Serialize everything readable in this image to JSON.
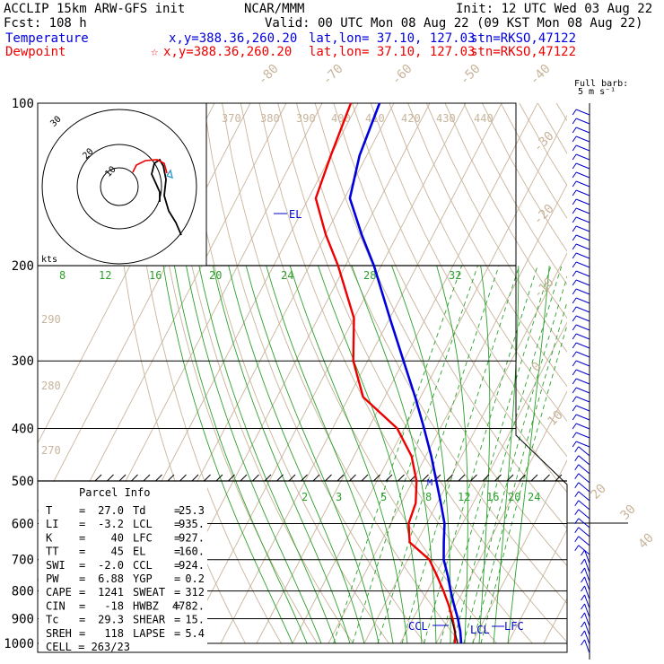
{
  "header": {
    "line1_left": "ACCLIP 15km ARW-GFS init",
    "line1_mid": "NCAR/MMM",
    "line1_right": "Init: 12 UTC Wed 03 Aug 22",
    "line2_left": "Fcst:  108 h",
    "line2_right": "Valid: 00 UTC Mon 08 Aug 22 (09 KST Mon 08 Aug 22)",
    "temp_label": "Temperature",
    "temp_xy": "x,y=388.36,260.20",
    "temp_latlon": "lat,lon= 37.10, 127.03",
    "temp_stn": "stn=RKSO,47122",
    "dew_label": "Dewpoint",
    "dew_star": "☆",
    "dew_xy": "x,y=388.36,260.20",
    "dew_latlon": "lat,lon= 37.10, 127.03",
    "dew_stn": "stn=RKSO,47122",
    "barb_title1": "Full barb:",
    "barb_title2": "5 m s⁻¹"
  },
  "colors": {
    "temperature": "#0000dd",
    "dewpoint": "#ee0000",
    "isotherm": "#c8b49b",
    "mixing": "#2ca02c",
    "grid": "#000000",
    "barb": "#0000cc"
  },
  "parcel": {
    "title": "Parcel Info",
    "rows": [
      {
        "l1": "T",
        "v1": "27.0",
        "l2": "Td",
        "v2": "25.3"
      },
      {
        "l1": "LI",
        "v1": "-3.2",
        "l2": "LCL",
        "v2": "935."
      },
      {
        "l1": "K",
        "v1": "40",
        "l2": "LFC",
        "v2": "927."
      },
      {
        "l1": "TT",
        "v1": "45",
        "l2": "EL",
        "v2": "160."
      },
      {
        "l1": "SWI",
        "v1": "-2.0",
        "l2": "CCL",
        "v2": "924."
      },
      {
        "l1": "PW",
        "v1": "6.88",
        "l2": "YGP",
        "v2": "0.2"
      },
      {
        "l1": "CAPE",
        "v1": "1241",
        "l2": "SWEAT",
        "v2": "312"
      },
      {
        "l1": "CIN",
        "v1": "-18",
        "l2": "HWBZ",
        "v2": "4782."
      },
      {
        "l1": "Tc",
        "v1": "29.3",
        "l2": "SHEAR",
        "v2": "15."
      },
      {
        "l1": "SREH",
        "v1": "118",
        "l2": "LAPSE",
        "v2": "5.4"
      }
    ],
    "cell": "CELL = 263/23"
  },
  "hodograph": {
    "ring_labels": [
      "30",
      "20",
      "10"
    ],
    "units": "kts"
  },
  "annotations": {
    "el": "EL",
    "m": "M",
    "ccl": "CCL",
    "lcl": "LCL",
    "lfc": "LFC"
  },
  "chart_data": {
    "type": "line",
    "title": "",
    "pressure_levels": [
      "100",
      "200",
      "300",
      "400",
      "500",
      "600",
      "700",
      "800",
      "900",
      "1000"
    ],
    "isotherm_labels": [
      "-80",
      "-70",
      "-60",
      "-50",
      "-40",
      "-30",
      "-20",
      "-10",
      "0",
      "10",
      "20",
      "30",
      "40"
    ],
    "theta_labels": [
      "370",
      "380",
      "390",
      "400",
      "410",
      "420",
      "430",
      "440",
      "290",
      "280",
      "270"
    ],
    "mixing_ratio_upper": [
      "8",
      "12",
      "16",
      "20",
      "24",
      "28",
      "32"
    ],
    "mixing_ratio_lower": [
      "2",
      "3",
      "5",
      "8",
      "12",
      "16",
      "20",
      "24"
    ],
    "series": [
      {
        "name": "Temperature",
        "x_units": "degC",
        "y_units": "hPa",
        "points": [
          {
            "p": 1000,
            "t": 27.0
          },
          {
            "p": 950,
            "t": 25.0
          },
          {
            "p": 900,
            "t": 22.5
          },
          {
            "p": 850,
            "t": 19.5
          },
          {
            "p": 800,
            "t": 16.5
          },
          {
            "p": 750,
            "t": 13.5
          },
          {
            "p": 700,
            "t": 10.0
          },
          {
            "p": 650,
            "t": 7.5
          },
          {
            "p": 600,
            "t": 5.0
          },
          {
            "p": 550,
            "t": 1.0
          },
          {
            "p": 500,
            "t": -3.5
          },
          {
            "p": 450,
            "t": -8.5
          },
          {
            "p": 400,
            "t": -14.5
          },
          {
            "p": 350,
            "t": -21.5
          },
          {
            "p": 300,
            "t": -30.0
          },
          {
            "p": 250,
            "t": -40.0
          },
          {
            "p": 200,
            "t": -52.0
          },
          {
            "p": 175,
            "t": -60.0
          },
          {
            "p": 150,
            "t": -68.5
          },
          {
            "p": 125,
            "t": -72.0
          },
          {
            "p": 100,
            "t": -74.0
          }
        ]
      },
      {
        "name": "Dewpoint",
        "x_units": "degC",
        "y_units": "hPa",
        "points": [
          {
            "p": 1000,
            "t": 25.3
          },
          {
            "p": 950,
            "t": 23.5
          },
          {
            "p": 900,
            "t": 21.0
          },
          {
            "p": 850,
            "t": 18.0
          },
          {
            "p": 800,
            "t": 14.5
          },
          {
            "p": 750,
            "t": 10.5
          },
          {
            "p": 700,
            "t": 6.0
          },
          {
            "p": 650,
            "t": -2.0
          },
          {
            "p": 600,
            "t": -5.0
          },
          {
            "p": 550,
            "t": -6.0
          },
          {
            "p": 500,
            "t": -9.0
          },
          {
            "p": 450,
            "t": -14.0
          },
          {
            "p": 400,
            "t": -22.0
          },
          {
            "p": 350,
            "t": -36.0
          },
          {
            "p": 300,
            "t": -44.0
          },
          {
            "p": 250,
            "t": -50.0
          },
          {
            "p": 200,
            "t": -62.0
          },
          {
            "p": 175,
            "t": -70.0
          },
          {
            "p": 150,
            "t": -78.0
          },
          {
            "p": 125,
            "t": -80.0
          },
          {
            "p": 100,
            "t": -82.0
          }
        ]
      }
    ],
    "ylim": [
      1000,
      100
    ],
    "y_scale": "log-pressure",
    "xlabel": "",
    "ylabel": ""
  }
}
